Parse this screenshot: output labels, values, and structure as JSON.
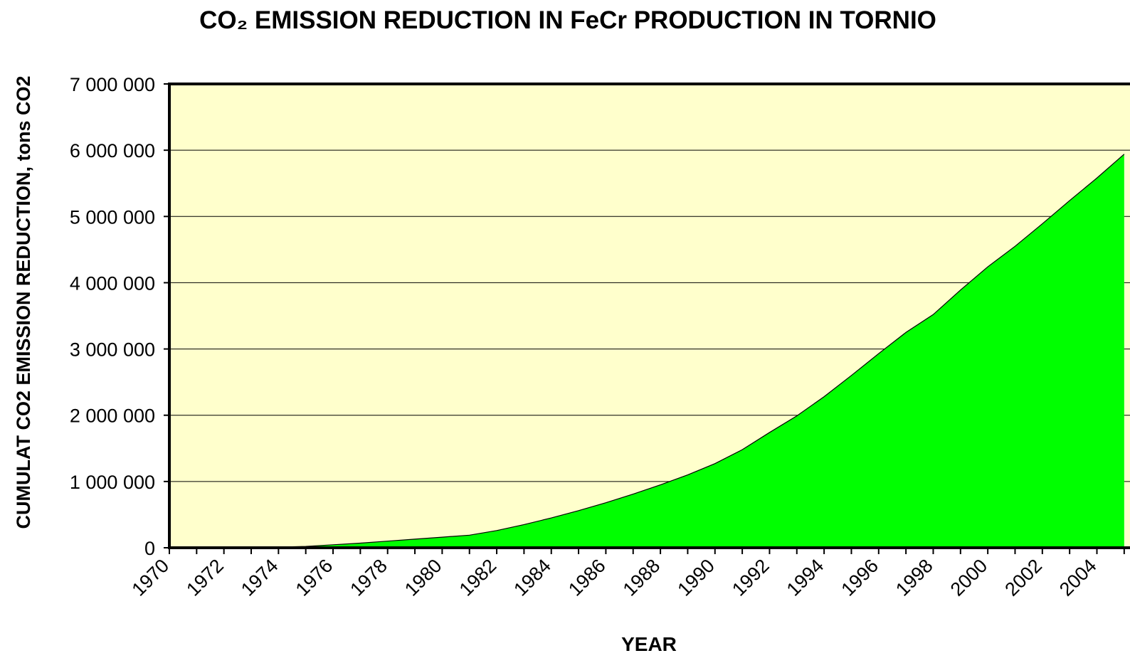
{
  "chart_data": {
    "type": "area",
    "title": "CO₂ EMISSION REDUCTION IN FeCr PRODUCTION IN TORNIO",
    "x_label": "YEAR",
    "y_label": "CUMULAT CO2 EMISSION REDUCTION, tons CO2",
    "x": [
      1970,
      1971,
      1972,
      1973,
      1974,
      1975,
      1976,
      1977,
      1978,
      1979,
      1980,
      1981,
      1982,
      1983,
      1984,
      1985,
      1986,
      1987,
      1988,
      1989,
      1990,
      1991,
      1992,
      1993,
      1994,
      1995,
      1996,
      1997,
      1998,
      1999,
      2000,
      2001,
      2002,
      2003,
      2004,
      2005
    ],
    "series": [
      {
        "color": "#00ff00",
        "values": [
          0,
          0,
          0,
          5000,
          10000,
          20000,
          45000,
          70000,
          100000,
          130000,
          160000,
          190000,
          260000,
          350000,
          450000,
          560000,
          680000,
          810000,
          950000,
          1100000,
          1270000,
          1480000,
          1740000,
          1990000,
          2280000,
          2600000,
          2930000,
          3250000,
          3520000,
          3890000,
          4240000,
          4550000,
          4890000,
          5240000,
          5580000,
          5940000
        ]
      }
    ],
    "xlim": [
      1970,
      2005.5
    ],
    "xticks": [
      1970,
      1972,
      1974,
      1976,
      1978,
      1980,
      1982,
      1984,
      1986,
      1988,
      1990,
      1992,
      1994,
      1996,
      1998,
      2000,
      2002,
      2004
    ],
    "x_minor_ticks": [
      1971,
      1973,
      1975,
      1977,
      1979,
      1981,
      1983,
      1985,
      1987,
      1989,
      1991,
      1993,
      1995,
      1997,
      1999,
      2001,
      2003,
      2005
    ],
    "ylim": [
      0,
      7000000
    ],
    "yticks": [
      0,
      {
        "value": 1000000,
        "label": "1 000 000"
      },
      {
        "value": 2000000,
        "label": "2 000 000"
      },
      {
        "value": 3000000,
        "label": "3 000 000"
      },
      {
        "value": 4000000,
        "label": "4 000 000"
      },
      {
        "value": 5000000,
        "label": "5 000 000"
      },
      {
        "value": 6000000,
        "label": "6 000 000"
      },
      {
        "value": 7000000,
        "label": "7 000 000"
      }
    ],
    "grid": true,
    "plot_background": "#ffffcc"
  }
}
